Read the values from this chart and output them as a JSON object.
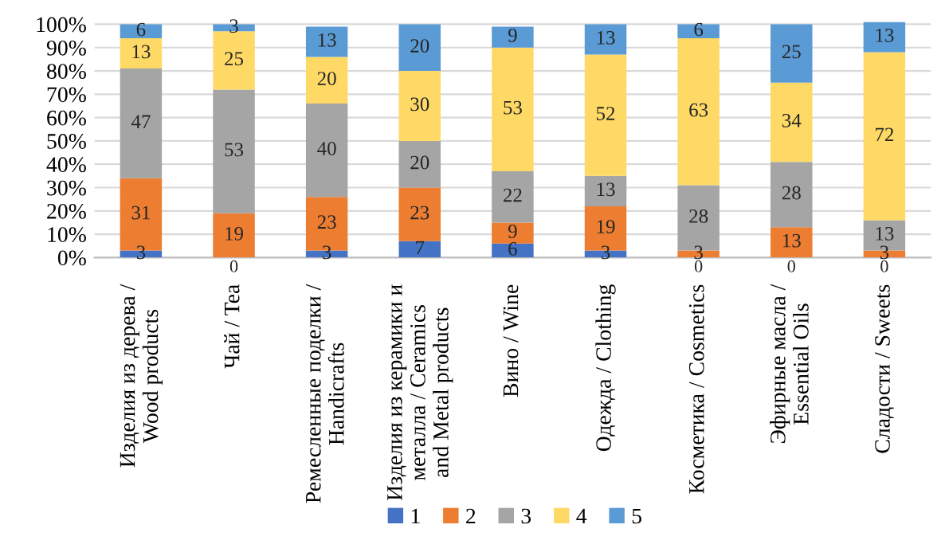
{
  "chart_data": {
    "type": "bar",
    "stacked": true,
    "categories": [
      "Изделия из дерева / Wood products",
      "Чай / Tea",
      "Ремесленные поделки / Handicrafts",
      "Изделия из керамики и металла / Ceramics and Metal products",
      "Вино / Wine",
      "Одежда / Clothing",
      "Косметика / Cosmetics",
      "Эфирные масла / Essential Oils",
      "Сладости / Sweets"
    ],
    "series": [
      {
        "name": "1",
        "color": "#4472c4",
        "values": [
          3,
          0,
          3,
          7,
          6,
          3,
          0,
          0,
          0
        ],
        "value_labels": [
          "3",
          null,
          "3",
          "7",
          "6",
          "3",
          null,
          null,
          null
        ]
      },
      {
        "name": "2",
        "color": "#ed7d31",
        "values": [
          31,
          19,
          23,
          23,
          9,
          19,
          3,
          13,
          3
        ]
      },
      {
        "name": "3",
        "color": "#a5a5a5",
        "values": [
          47,
          53,
          40,
          20,
          22,
          13,
          28,
          28,
          13
        ]
      },
      {
        "name": "4",
        "color": "#ffd966",
        "values": [
          13,
          25,
          20,
          30,
          53,
          52,
          63,
          34,
          72
        ]
      },
      {
        "name": "5",
        "color": "#5b9bd5",
        "values": [
          6,
          3,
          13,
          20,
          9,
          13,
          6,
          25,
          13
        ]
      }
    ],
    "ylim": [
      0,
      101
    ],
    "yticks": [
      {
        "value": 0,
        "label": "0%"
      },
      {
        "value": 10,
        "label": "10%"
      },
      {
        "value": 20,
        "label": "20%"
      },
      {
        "value": 30,
        "label": "30%"
      },
      {
        "value": 40,
        "label": "40%"
      },
      {
        "value": 50,
        "label": "50%"
      },
      {
        "value": 60,
        "label": "60%"
      },
      {
        "value": 70,
        "label": "70%"
      },
      {
        "value": 80,
        "label": "80%"
      },
      {
        "value": 90,
        "label": "90%"
      },
      {
        "value": 100,
        "label": "100%"
      }
    ],
    "grid": "y",
    "legend": "bottom",
    "data_labels": true,
    "annotations": [
      {
        "text": "0",
        "x": "Чай / Tea",
        "y": 0
      },
      {
        "text": "0",
        "x": "Косметика / Cosmetics",
        "y": 0
      },
      {
        "text": "0",
        "x": "Эфирные масла / Essential Oils",
        "y": 0
      },
      {
        "text": "0",
        "x": "Сладости / Sweets",
        "y": 0
      }
    ]
  }
}
